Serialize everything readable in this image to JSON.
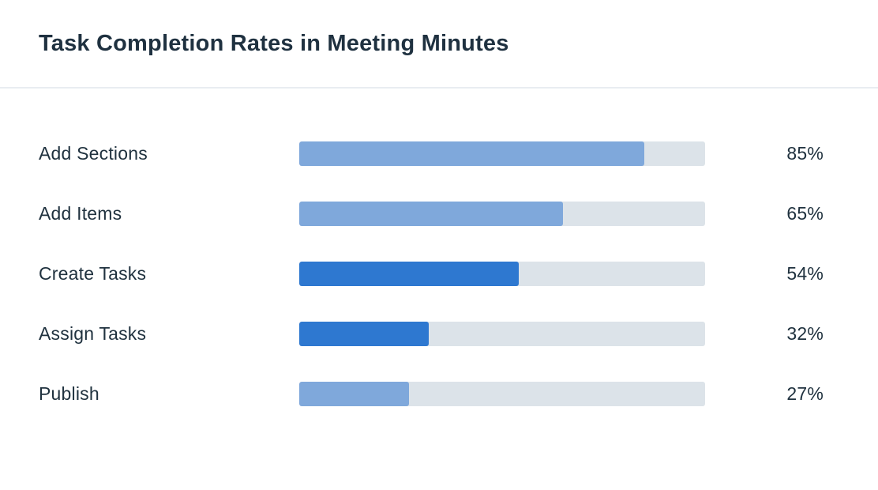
{
  "header": {
    "title": "Task Completion Rates in Meeting Minutes"
  },
  "colors": {
    "background": "#ffffff",
    "title_text": "#1f3140",
    "label_text": "#20323f",
    "divider": "#e9edf1",
    "track": "#dce3e9",
    "light_bar": "#7fa8db",
    "dark_bar": "#2e78d0"
  },
  "chart_data": {
    "type": "bar",
    "orientation": "horizontal",
    "title": "Task Completion Rates in Meeting Minutes",
    "categories": [
      "Add Sections",
      "Add Items",
      "Create Tasks",
      "Assign Tasks",
      "Publish"
    ],
    "values": [
      85,
      65,
      54,
      32,
      27
    ],
    "value_labels": [
      "85%",
      "65%",
      "54%",
      "32%",
      "27%"
    ],
    "bar_colors": [
      "#7fa8db",
      "#7fa8db",
      "#2e78d0",
      "#2e78d0",
      "#7fa8db"
    ],
    "xlim": [
      0,
      100
    ],
    "grid": false,
    "legend": false,
    "value_label_position": "right"
  }
}
